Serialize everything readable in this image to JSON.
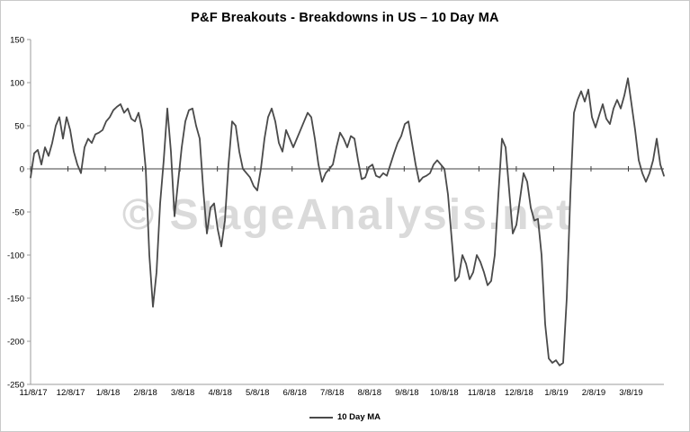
{
  "chart_data": {
    "type": "line",
    "title": "P&F Breakouts - Breakdowns in US – 10 Day MA",
    "watermark": "© StageAnalysis.net",
    "watermark_color": "#dadada",
    "xlabel": "",
    "ylabel": "",
    "ylim": [
      -250,
      150
    ],
    "y_ticks": [
      150,
      100,
      50,
      0,
      -50,
      -100,
      -150,
      -200,
      -250
    ],
    "x_tick_labels": [
      "11/8/17",
      "12/8/17",
      "1/8/18",
      "2/8/18",
      "3/8/18",
      "4/8/18",
      "5/8/18",
      "6/8/18",
      "7/8/18",
      "8/8/18",
      "9/8/18",
      "10/8/18",
      "11/8/18",
      "12/8/18",
      "1/8/19",
      "2/8/19",
      "3/8/19"
    ],
    "grid": "none",
    "zero_line": true,
    "legend_position": "bottom-center",
    "series": [
      {
        "name": "10 Day MA",
        "color": "#4a4a4a",
        "values": [
          -10,
          18,
          22,
          5,
          25,
          15,
          30,
          50,
          60,
          35,
          60,
          45,
          20,
          5,
          -5,
          25,
          35,
          30,
          40,
          42,
          45,
          55,
          60,
          68,
          72,
          75,
          65,
          70,
          58,
          55,
          65,
          45,
          0,
          -100,
          -160,
          -120,
          -40,
          10,
          70,
          20,
          -55,
          -15,
          25,
          55,
          68,
          70,
          50,
          35,
          -25,
          -75,
          -45,
          -40,
          -70,
          -90,
          -60,
          5,
          55,
          50,
          20,
          0,
          -5,
          -10,
          -20,
          -25,
          0,
          35,
          60,
          70,
          55,
          30,
          20,
          45,
          35,
          25,
          35,
          45,
          55,
          65,
          60,
          35,
          5,
          -15,
          -5,
          0,
          5,
          25,
          42,
          35,
          25,
          38,
          35,
          10,
          -12,
          -10,
          2,
          5,
          -8,
          -10,
          -5,
          -8,
          5,
          18,
          30,
          38,
          52,
          55,
          30,
          5,
          -15,
          -10,
          -8,
          -5,
          5,
          10,
          5,
          0,
          -30,
          -80,
          -130,
          -125,
          -100,
          -110,
          -128,
          -120,
          -100,
          -108,
          -120,
          -135,
          -130,
          -100,
          -30,
          35,
          25,
          -25,
          -75,
          -65,
          -35,
          -5,
          -15,
          -45,
          -60,
          -58,
          -100,
          -180,
          -220,
          -225,
          -222,
          -228,
          -225,
          -150,
          -30,
          65,
          80,
          90,
          78,
          92,
          60,
          48,
          62,
          75,
          58,
          52,
          70,
          80,
          70,
          85,
          105,
          75,
          45,
          10,
          -5,
          -15,
          -5,
          10,
          35,
          5,
          -8
        ]
      }
    ]
  },
  "legend": {
    "label": "10 Day MA"
  }
}
